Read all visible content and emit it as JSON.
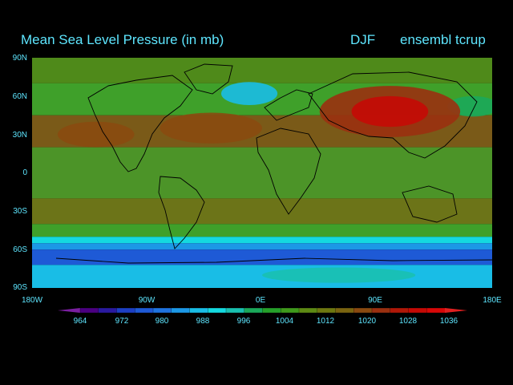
{
  "title": "Mean Sea Level Pressure (in mb)",
  "season": "DJF",
  "model": "ensembl tcrup",
  "lat_labels": [
    "90N",
    "60N",
    "30N",
    "0",
    "30S",
    "60S",
    "90S"
  ],
  "lon_labels": [
    "180W",
    "90W",
    "0E",
    "90E",
    "180E"
  ],
  "colorbar": {
    "labels": [
      "964",
      "972",
      "980",
      "988",
      "996",
      "1004",
      "1012",
      "1020",
      "1028",
      "1036"
    ],
    "colors": [
      "#4b0082",
      "#2a1aa0",
      "#1d3fc4",
      "#1e5ad6",
      "#1f74e0",
      "#1c98e6",
      "#19bde6",
      "#14d9e0",
      "#19c0b0",
      "#1ba85a",
      "#25a02a",
      "#3f9a1c",
      "#5d8a14",
      "#6e7810",
      "#7a6410",
      "#8a4a10",
      "#9a3010",
      "#b01808",
      "#c50a05",
      "#d80808"
    ],
    "arrow_left": "#7a1fa0",
    "arrow_right": "#e02020"
  },
  "map": {
    "lat_bands": [
      {
        "lat_top": 90,
        "lat_bottom": 70,
        "color": "#4f8a1a"
      },
      {
        "lat_top": 70,
        "lat_bottom": 45,
        "color": "#3fa02a"
      },
      {
        "lat_top": 45,
        "lat_bottom": 20,
        "color": "#7a5a18"
      },
      {
        "lat_top": 20,
        "lat_bottom": -20,
        "color": "#4c9428"
      },
      {
        "lat_top": -20,
        "lat_bottom": -40,
        "color": "#6c7418"
      },
      {
        "lat_top": -40,
        "lat_bottom": -50,
        "color": "#3fa02a"
      },
      {
        "lat_top": -50,
        "lat_bottom": -55,
        "color": "#14d9e0"
      },
      {
        "lat_top": -55,
        "lat_bottom": -60,
        "color": "#1c98e6"
      },
      {
        "lat_top": -60,
        "lat_bottom": -72,
        "color": "#1e5ad6"
      },
      {
        "lat_top": -72,
        "lat_bottom": -90,
        "color": "#19bde6"
      }
    ],
    "highs": [
      {
        "lon": 100,
        "lat": 48,
        "rx_deg": 30,
        "ry_deg": 12,
        "color": "#c50a05"
      },
      {
        "lon": 100,
        "lat": 48,
        "rx_deg": 55,
        "ry_deg": 20,
        "color": "#9a3010"
      },
      {
        "lon": -40,
        "lat": 35,
        "rx_deg": 40,
        "ry_deg": 12,
        "color": "#8a4a10"
      },
      {
        "lon": -130,
        "lat": 30,
        "rx_deg": 30,
        "ry_deg": 10,
        "color": "#8a4a10"
      }
    ],
    "lows": [
      {
        "lon": -10,
        "lat": 62,
        "rx_deg": 22,
        "ry_deg": 9,
        "color": "#19bde6"
      },
      {
        "lon": 165,
        "lat": 52,
        "rx_deg": 20,
        "ry_deg": 8,
        "color": "#1ba85a"
      },
      {
        "lon": 60,
        "lat": -80,
        "rx_deg": 60,
        "ry_deg": 6,
        "color": "#19c0b0"
      }
    ]
  }
}
